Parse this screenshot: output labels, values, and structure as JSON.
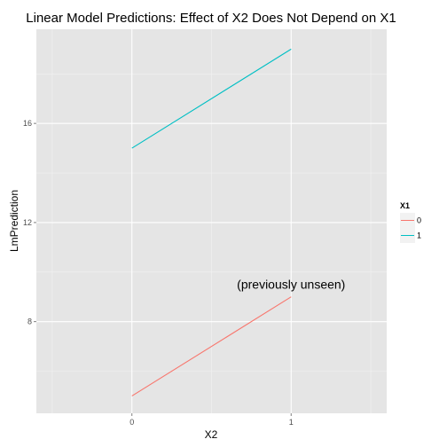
{
  "chart_data": {
    "type": "line",
    "title": "Linear Model Predictions: Effect of X2 Does Not Depend on X1",
    "xlabel": "X2",
    "ylabel": "LmPrediction",
    "x": [
      0,
      1
    ],
    "xticks": [
      "0",
      "1"
    ],
    "yticks": [
      "8",
      "12",
      "16"
    ],
    "xlim": [
      -0.6,
      1.6
    ],
    "ylim": [
      4.3,
      19.8
    ],
    "grid": true,
    "legend": {
      "title": "X1",
      "position": "right",
      "entries": [
        "0",
        "1"
      ]
    },
    "series": [
      {
        "name": "0",
        "color": "#F8766D",
        "values": [
          5.0,
          9.0
        ]
      },
      {
        "name": "1",
        "color": "#00BFC4",
        "values": [
          15.0,
          19.0
        ]
      }
    ],
    "annotations": [
      {
        "text": "(previously unseen)",
        "x": 1.0,
        "y": 9.5
      }
    ],
    "colors": {
      "panel_background": "#E5E5E5",
      "grid_major": "#FFFFFF",
      "grid_minor": "#F2F2F2"
    }
  }
}
